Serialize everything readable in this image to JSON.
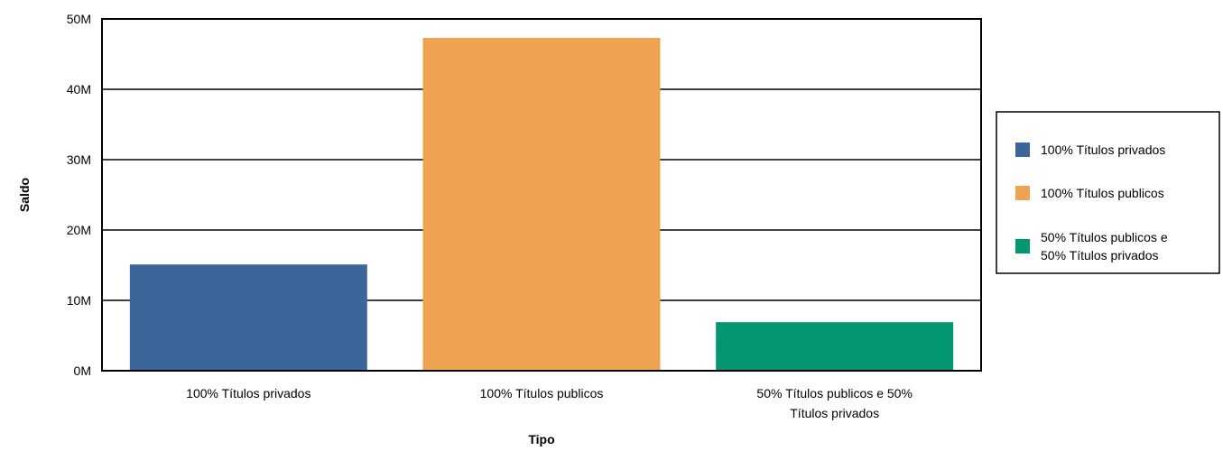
{
  "chart_data": {
    "type": "bar",
    "xlabel": "Tipo",
    "ylabel": "Saldo",
    "ylim": [
      0,
      50000000
    ],
    "yticks": [
      {
        "value": 0,
        "label": "0M"
      },
      {
        "value": 10000000,
        "label": "10M"
      },
      {
        "value": 20000000,
        "label": "20M"
      },
      {
        "value": 30000000,
        "label": "30M"
      },
      {
        "value": 40000000,
        "label": "40M"
      },
      {
        "value": 50000000,
        "label": "50M"
      }
    ],
    "grid": true,
    "legend_position": "right",
    "categories": [
      "100% Títulos privados",
      "100% Títulos publicos",
      "50% Títulos publicos e 50% Títulos privados"
    ],
    "category_label_lines": [
      [
        "100% Títulos privados"
      ],
      [
        "100% Títulos publicos"
      ],
      [
        "50% Títulos publicos e 50%",
        "Títulos privados"
      ]
    ],
    "values": [
      15100000,
      47300000,
      6900000
    ],
    "colors": [
      "#3a6699",
      "#eda350",
      "#029671"
    ],
    "legend": [
      {
        "lines": [
          "100% Títulos privados"
        ],
        "color": "#3a6699"
      },
      {
        "lines": [
          "100% Títulos publicos"
        ],
        "color": "#eda350"
      },
      {
        "lines": [
          "50% Títulos publicos e",
          "50% Títulos privados"
        ],
        "color": "#029671"
      }
    ]
  }
}
